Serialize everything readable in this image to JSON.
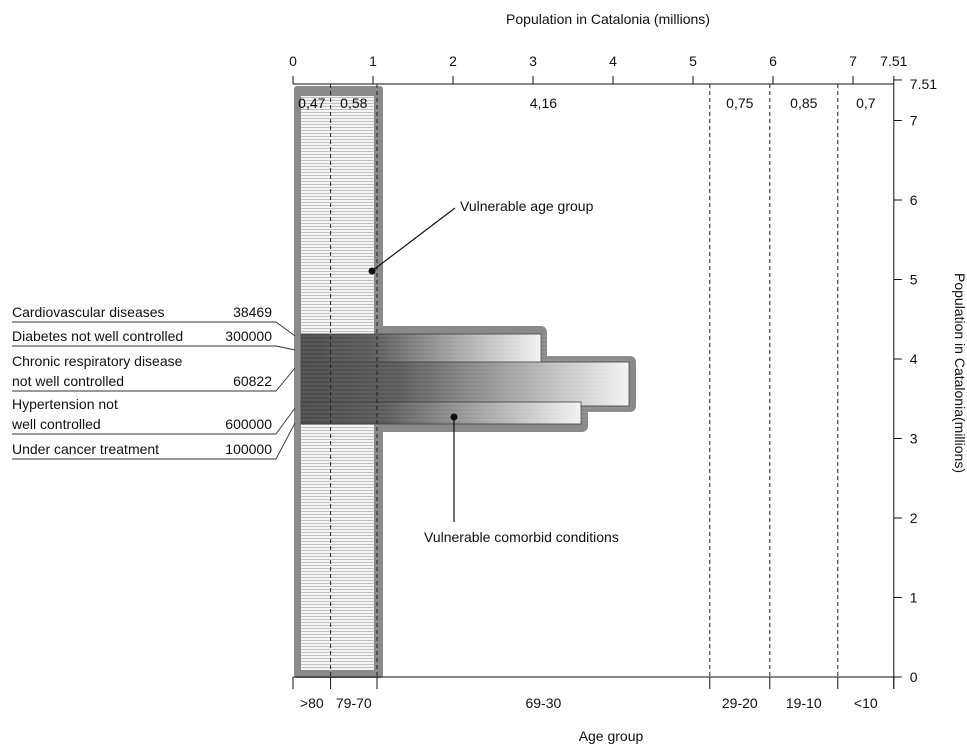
{
  "chart_data": {
    "type": "bar",
    "top_axis": {
      "label": "Population  in Catalonia (millions)",
      "range": [
        0,
        7.51
      ],
      "ticks": [
        "0",
        "1",
        "2",
        "3",
        "4",
        "5",
        "6",
        "7",
        "7.51"
      ]
    },
    "right_axis": {
      "label": "Population  in Catalonia(millions)",
      "range": [
        0,
        7.51
      ],
      "ticks": [
        "0",
        "1",
        "2",
        "3",
        "4",
        "5",
        "6",
        "7",
        "7.51"
      ]
    },
    "bottom_axis": {
      "label": "Age group"
    },
    "age_groups": [
      {
        "label": ">80",
        "population_millions": 0.47,
        "value_label": "0,47"
      },
      {
        "label": "79-70",
        "population_millions": 0.58,
        "value_label": "0,58"
      },
      {
        "label": "69-30",
        "population_millions": 4.16,
        "value_label": "4,16"
      },
      {
        "label": "29-20",
        "population_millions": 0.75,
        "value_label": "0,75"
      },
      {
        "label": "19-10",
        "population_millions": 0.85,
        "value_label": "0,85"
      },
      {
        "label": "<10",
        "population_millions": 0.7,
        "value_label": "0,7"
      }
    ],
    "comorbid_conditions": [
      {
        "lines": [
          "Cardiovascular diseases"
        ],
        "count": "38469"
      },
      {
        "lines": [
          "Diabetes not well controlled"
        ],
        "count": "300000"
      },
      {
        "lines": [
          "Chronic respiratory disease",
          "not well controlled"
        ],
        "count": "60822"
      },
      {
        "lines": [
          "Hypertension not",
          "well controlled"
        ],
        "count": "600000"
      },
      {
        "lines": [
          "Under cancer treatment"
        ],
        "count": "100000"
      }
    ],
    "comorbid_bars": [
      {
        "population_millions": 3.1
      },
      {
        "population_millions": 4.2
      },
      {
        "population_millions": 3.6
      }
    ],
    "annotations": {
      "age": "Vulnerable age group",
      "comorbid": "Vulnerable comorbid conditions"
    }
  }
}
